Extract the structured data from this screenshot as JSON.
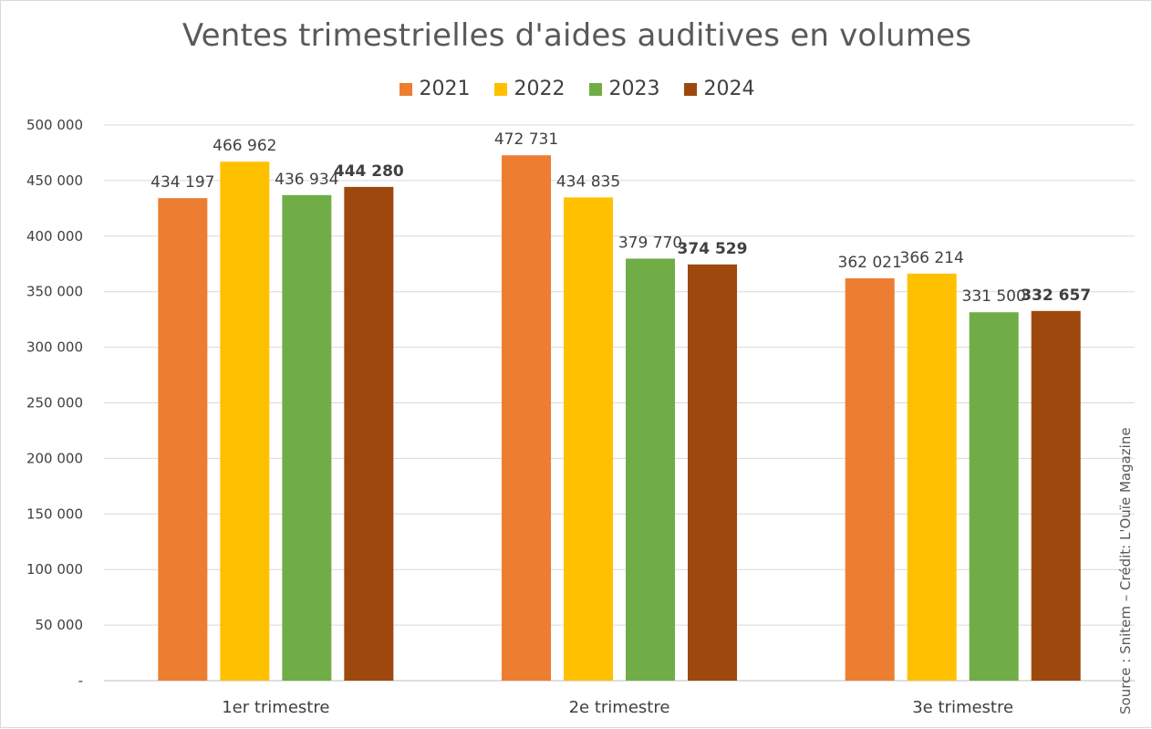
{
  "chart_data": {
    "type": "bar",
    "title": "Ventes trimestrielles d'aides auditives en volumes",
    "categories": [
      "1er trimestre",
      "2e trimestre",
      "3e trimestre"
    ],
    "series": [
      {
        "name": "2021",
        "color": "#ED7D31",
        "values": [
          434197,
          472731,
          362021
        ],
        "labels": [
          "434 197",
          "472 731",
          "362 021"
        ]
      },
      {
        "name": "2022",
        "color": "#FFC000",
        "values": [
          466962,
          434835,
          366214
        ],
        "labels": [
          "466 962",
          "434 835",
          "366 214"
        ]
      },
      {
        "name": "2023",
        "color": "#70AD47",
        "values": [
          436934,
          379770,
          331500
        ],
        "labels": [
          "436 934",
          "379 770",
          "331 500"
        ]
      },
      {
        "name": "2024",
        "color": "#9E480E",
        "values": [
          444280,
          374529,
          332657
        ],
        "labels": [
          "444 280",
          "374 529",
          "332 657"
        ],
        "bold_labels": true
      }
    ],
    "ylim": [
      0,
      500000
    ],
    "yticks": [
      0,
      50000,
      100000,
      150000,
      200000,
      250000,
      300000,
      350000,
      400000,
      450000,
      500000
    ],
    "ytick_labels": [
      "-",
      "50 000",
      "100 000",
      "150 000",
      "200 000",
      "250 000",
      "300 000",
      "350 000",
      "400 000",
      "450 000",
      "500 000"
    ],
    "grid": true,
    "legend_position": "top-center",
    "source_note": "Source : Snitem – Crédit: L'Ouïe Magazine"
  }
}
